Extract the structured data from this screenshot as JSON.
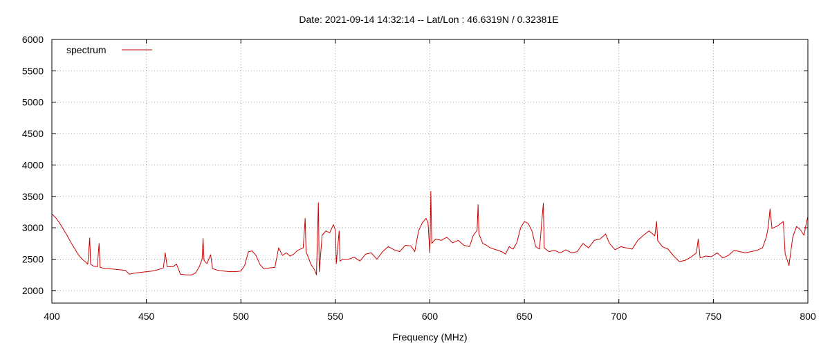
{
  "chart_data": {
    "type": "line",
    "title": "Date: 2021-09-14 14:32:14  --  Lat/Lon : 46.6319N / 0.32381E",
    "xlabel": "Frequency (MHz)",
    "ylabel": "",
    "xlim": [
      400,
      800
    ],
    "ylim": [
      1800,
      6000
    ],
    "x_ticks": [
      400,
      450,
      500,
      550,
      600,
      650,
      700,
      750,
      800
    ],
    "y_ticks": [
      2000,
      2500,
      3000,
      3500,
      4000,
      4500,
      5000,
      5500,
      6000
    ],
    "grid": true,
    "legend_position": "top-left",
    "series": [
      {
        "name": "spectrum",
        "color": "#cc0000",
        "points": [
          [
            400,
            3220
          ],
          [
            402,
            3160
          ],
          [
            404,
            3080
          ],
          [
            406,
            2980
          ],
          [
            408,
            2880
          ],
          [
            410,
            2770
          ],
          [
            412,
            2670
          ],
          [
            414,
            2570
          ],
          [
            416,
            2500
          ],
          [
            418,
            2450
          ],
          [
            419,
            2420
          ],
          [
            420,
            2840
          ],
          [
            420.5,
            2420
          ],
          [
            422,
            2390
          ],
          [
            424,
            2380
          ],
          [
            425,
            2750
          ],
          [
            425.5,
            2370
          ],
          [
            428,
            2350
          ],
          [
            430,
            2350
          ],
          [
            433,
            2340
          ],
          [
            436,
            2330
          ],
          [
            439,
            2320
          ],
          [
            441,
            2260
          ],
          [
            444,
            2280
          ],
          [
            447,
            2290
          ],
          [
            450,
            2300
          ],
          [
            453,
            2310
          ],
          [
            456,
            2330
          ],
          [
            459,
            2360
          ],
          [
            460,
            2600
          ],
          [
            461,
            2380
          ],
          [
            464,
            2380
          ],
          [
            466,
            2420
          ],
          [
            468,
            2260
          ],
          [
            471,
            2250
          ],
          [
            474,
            2250
          ],
          [
            476,
            2280
          ],
          [
            478,
            2380
          ],
          [
            479.5,
            2500
          ],
          [
            480,
            2830
          ],
          [
            480.5,
            2480
          ],
          [
            482,
            2430
          ],
          [
            484,
            2570
          ],
          [
            485,
            2350
          ],
          [
            488,
            2320
          ],
          [
            491,
            2310
          ],
          [
            494,
            2300
          ],
          [
            497,
            2300
          ],
          [
            500,
            2310
          ],
          [
            502,
            2400
          ],
          [
            504,
            2620
          ],
          [
            506,
            2630
          ],
          [
            508,
            2560
          ],
          [
            510,
            2420
          ],
          [
            512,
            2350
          ],
          [
            515,
            2360
          ],
          [
            518,
            2370
          ],
          [
            520,
            2680
          ],
          [
            522,
            2560
          ],
          [
            524,
            2600
          ],
          [
            526,
            2550
          ],
          [
            528,
            2580
          ],
          [
            530,
            2640
          ],
          [
            533,
            2680
          ],
          [
            534,
            3150
          ],
          [
            534.5,
            2620
          ],
          [
            537,
            2420
          ],
          [
            539,
            2330
          ],
          [
            540,
            2250
          ],
          [
            541,
            3400
          ],
          [
            541.5,
            2300
          ],
          [
            543,
            2880
          ],
          [
            545,
            2950
          ],
          [
            547,
            2920
          ],
          [
            549,
            3050
          ],
          [
            550,
            2960
          ],
          [
            550.5,
            2430
          ],
          [
            552,
            2950
          ],
          [
            552.5,
            2470
          ],
          [
            554,
            2500
          ],
          [
            557,
            2500
          ],
          [
            560,
            2530
          ],
          [
            563,
            2470
          ],
          [
            566,
            2580
          ],
          [
            569,
            2600
          ],
          [
            572,
            2500
          ],
          [
            575,
            2620
          ],
          [
            578,
            2700
          ],
          [
            581,
            2650
          ],
          [
            584,
            2620
          ],
          [
            587,
            2720
          ],
          [
            590,
            2710
          ],
          [
            592,
            2620
          ],
          [
            594,
            2950
          ],
          [
            596,
            3080
          ],
          [
            598,
            3150
          ],
          [
            599,
            3080
          ],
          [
            600,
            2600
          ],
          [
            600.5,
            3580
          ],
          [
            601,
            2750
          ],
          [
            603,
            2820
          ],
          [
            606,
            2800
          ],
          [
            609,
            2850
          ],
          [
            612,
            2760
          ],
          [
            615,
            2800
          ],
          [
            618,
            2720
          ],
          [
            621,
            2700
          ],
          [
            623,
            2880
          ],
          [
            625,
            2960
          ],
          [
            625.5,
            3370
          ],
          [
            626,
            2900
          ],
          [
            628,
            2750
          ],
          [
            630,
            2720
          ],
          [
            632,
            2680
          ],
          [
            635,
            2650
          ],
          [
            638,
            2620
          ],
          [
            640,
            2580
          ],
          [
            642,
            2700
          ],
          [
            644,
            2660
          ],
          [
            646,
            2760
          ],
          [
            648,
            3000
          ],
          [
            650,
            3100
          ],
          [
            652,
            3070
          ],
          [
            654,
            2950
          ],
          [
            656,
            2700
          ],
          [
            658,
            2660
          ],
          [
            660,
            3390
          ],
          [
            660.5,
            2680
          ],
          [
            663,
            2620
          ],
          [
            666,
            2640
          ],
          [
            669,
            2600
          ],
          [
            672,
            2650
          ],
          [
            675,
            2600
          ],
          [
            678,
            2620
          ],
          [
            681,
            2750
          ],
          [
            684,
            2680
          ],
          [
            687,
            2800
          ],
          [
            690,
            2820
          ],
          [
            693,
            2900
          ],
          [
            695,
            2750
          ],
          [
            698,
            2650
          ],
          [
            701,
            2700
          ],
          [
            704,
            2680
          ],
          [
            707,
            2660
          ],
          [
            710,
            2800
          ],
          [
            713,
            2880
          ],
          [
            716,
            2950
          ],
          [
            719,
            2870
          ],
          [
            720,
            3100
          ],
          [
            720.5,
            2800
          ],
          [
            723,
            2700
          ],
          [
            726,
            2660
          ],
          [
            729,
            2550
          ],
          [
            732,
            2460
          ],
          [
            735,
            2480
          ],
          [
            738,
            2530
          ],
          [
            741,
            2600
          ],
          [
            742,
            2820
          ],
          [
            743,
            2520
          ],
          [
            746,
            2550
          ],
          [
            749,
            2540
          ],
          [
            752,
            2600
          ],
          [
            755,
            2520
          ],
          [
            758,
            2560
          ],
          [
            761,
            2640
          ],
          [
            764,
            2620
          ],
          [
            767,
            2600
          ],
          [
            770,
            2620
          ],
          [
            773,
            2640
          ],
          [
            776,
            2680
          ],
          [
            778,
            2850
          ],
          [
            779,
            3000
          ],
          [
            780,
            3300
          ],
          [
            781,
            2990
          ],
          [
            784,
            3030
          ],
          [
            787,
            3100
          ],
          [
            788,
            2580
          ],
          [
            790,
            2400
          ],
          [
            792,
            2850
          ],
          [
            794,
            3020
          ],
          [
            796,
            2970
          ],
          [
            798,
            2880
          ],
          [
            799,
            3050
          ],
          [
            800,
            3180
          ]
        ]
      }
    ]
  }
}
